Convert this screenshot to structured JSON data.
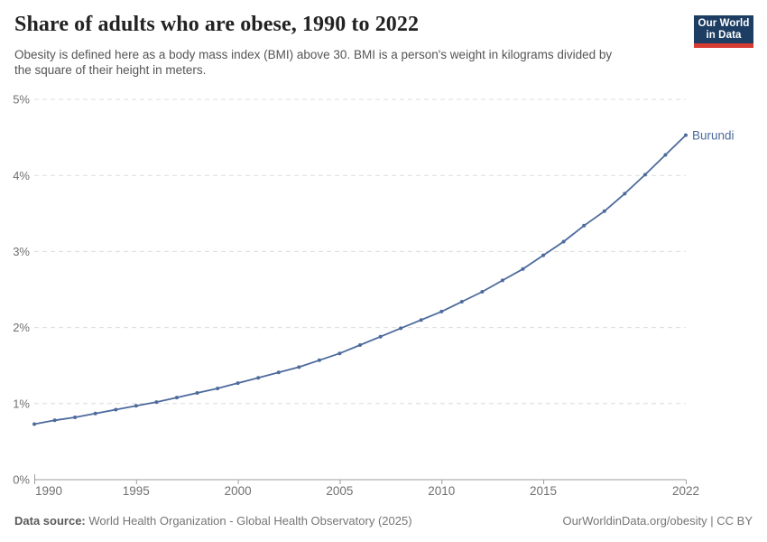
{
  "header": {
    "title": "Share of adults who are obese, 1990 to 2022",
    "subtitle_lines": [
      "Obesity is defined here as a body mass index (BMI) above 30. BMI is a person's weight in kilograms divided by",
      "the square of their height in meters."
    ],
    "logo": {
      "line1": "Our World",
      "line2": "in Data",
      "bg_color": "#1d3d63",
      "bar_color": "#d73c32"
    }
  },
  "chart_data": {
    "type": "line",
    "title": "Share of adults who are obese, 1990 to 2022",
    "x": [
      1990,
      1991,
      1992,
      1993,
      1994,
      1995,
      1996,
      1997,
      1998,
      1999,
      2000,
      2001,
      2002,
      2003,
      2004,
      2005,
      2006,
      2007,
      2008,
      2009,
      2010,
      2011,
      2012,
      2013,
      2014,
      2015,
      2016,
      2017,
      2018,
      2019,
      2020,
      2021,
      2022
    ],
    "series": [
      {
        "name": "Burundi",
        "color": "#4c6a9c",
        "values": [
          0.73,
          0.78,
          0.82,
          0.87,
          0.92,
          0.97,
          1.02,
          1.08,
          1.14,
          1.2,
          1.27,
          1.34,
          1.41,
          1.48,
          1.57,
          1.66,
          1.77,
          1.88,
          1.99,
          2.1,
          2.21,
          2.34,
          2.47,
          2.62,
          2.77,
          2.95,
          3.13,
          3.34,
          3.53,
          3.76,
          4.01,
          4.27,
          4.53
        ]
      }
    ],
    "xlim": [
      1990,
      2022
    ],
    "ylim": [
      0,
      5
    ],
    "x_ticks": [
      1990,
      1995,
      2000,
      2005,
      2010,
      2015,
      2022
    ],
    "y_ticks": [
      {
        "value": 0,
        "label": "0%"
      },
      {
        "value": 1,
        "label": "1%"
      },
      {
        "value": 2,
        "label": "2%"
      },
      {
        "value": 3,
        "label": "3%"
      },
      {
        "value": 4,
        "label": "4%"
      },
      {
        "value": 5,
        "label": "5%"
      }
    ],
    "grid": "horizontal-dashed",
    "legend": "series-end-label"
  },
  "footer": {
    "datasource_label": "Data source:",
    "datasource_text": "World Health Organization - Global Health Observatory (2025)",
    "credit_link": "OurWorldinData.org/obesity",
    "separator": "|",
    "license": "CC BY"
  },
  "colors": {
    "line": "#4c6a9c",
    "grid": "#dcdcdc",
    "axis": "#9e9e9e",
    "tick_label": "#707070",
    "title": "#222222",
    "subtitle": "#555555",
    "footer": "#757575"
  }
}
